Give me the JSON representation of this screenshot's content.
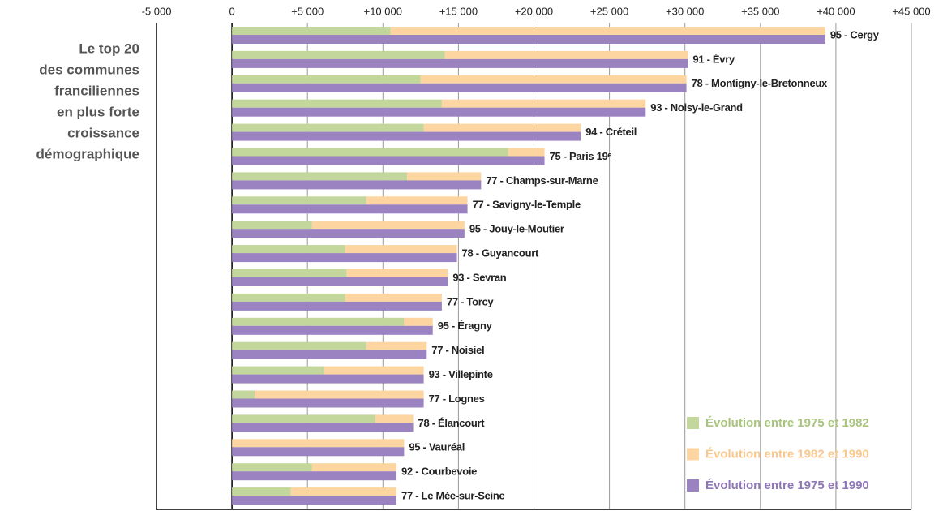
{
  "chart_data": {
    "type": "bar",
    "orientation": "horizontal",
    "title": [
      "Le top 20",
      "des communes",
      "franciliennes",
      "en plus forte",
      "croissance",
      "démographique"
    ],
    "categories": [
      "95 - Cergy",
      "91 - Évry",
      "78 - Montigny-le-Bretonneux",
      "93 - Noisy-le-Grand",
      "94 - Créteil",
      "75 - Paris 19ᵉ",
      "77 - Champs-sur-Marne",
      "77 - Savigny-le-Temple",
      "95 - Jouy-le-Moutier",
      "78 - Guyancourt",
      "93 - Sevran",
      "77 - Torcy",
      "95 - Éragny",
      "77 - Noisiel",
      "93 - Villepinte",
      "77 - Lognes",
      "78 - Élancourt",
      "95 - Vauréal",
      "92 - Courbevoie",
      "77 - Le Mée-sur-Seine"
    ],
    "series": [
      {
        "name": "Évolution entre 1975 et 1982",
        "color": "#c3d69b",
        "text_color": "#a9c47c",
        "stack": 0,
        "values": [
          10500,
          14100,
          12500,
          13900,
          12700,
          18300,
          11600,
          8900,
          5300,
          7500,
          7600,
          7500,
          11400,
          8900,
          6100,
          1500,
          9500,
          0,
          5300,
          3900
        ]
      },
      {
        "name": "Évolution entre 1982 et 1990",
        "color": "#fcd5a0",
        "text_color": "#f9c88e",
        "stack": 0,
        "values": [
          28800,
          16100,
          17600,
          13500,
          10400,
          2400,
          4900,
          6700,
          10100,
          7400,
          6700,
          6400,
          1900,
          4000,
          6600,
          11200,
          2500,
          11400,
          5600,
          7000
        ]
      },
      {
        "name": "Évolution entre 1975 et 1990",
        "color": "#9b82c0",
        "text_color": "#8f77b6",
        "stack": 1,
        "values": [
          39300,
          30200,
          30100,
          27400,
          23100,
          20700,
          16500,
          15600,
          15400,
          14900,
          14300,
          13900,
          13300,
          12900,
          12700,
          12700,
          12000,
          11400,
          10900,
          10900
        ]
      }
    ],
    "xlim": [
      -5000,
      45000
    ],
    "xticks": [
      {
        "value": -5000,
        "label": "-5 000"
      },
      0,
      {
        "value": 5000,
        "label": "+5 000"
      },
      {
        "value": 10000,
        "label": "+10 000"
      },
      {
        "value": 15000,
        "label": "+15 000"
      },
      {
        "value": 20000,
        "label": "+20 000"
      },
      {
        "value": 25000,
        "label": "+25 000"
      },
      {
        "value": 30000,
        "label": "+30 000"
      },
      {
        "value": 35000,
        "label": "+35 000"
      },
      {
        "value": 40000,
        "label": "+40 000"
      },
      {
        "value": 45000,
        "label": "+45 000"
      }
    ],
    "grid": true,
    "legend": "lower right"
  }
}
